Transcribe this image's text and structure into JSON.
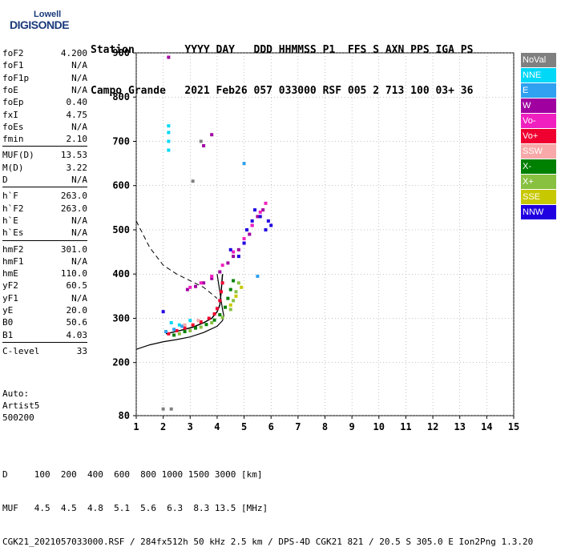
{
  "logo": {
    "line1": "Lowell",
    "line2": "DIGISONDE"
  },
  "header": {
    "row1": "Station        YYYY DAY   DDD HHMMSS P1  FFS S AXN PPS IGA PS",
    "row2": "Campo Grande   2021 Feb26 057 033000 RSF 005 2 713 100 03+ 36"
  },
  "params": {
    "g1": [
      {
        "name": "foF2",
        "value": "4.200"
      },
      {
        "name": "foF1",
        "value": "N/A"
      },
      {
        "name": "foF1p",
        "value": "N/A"
      },
      {
        "name": "foE",
        "value": "N/A"
      },
      {
        "name": "foEp",
        "value": "0.40"
      },
      {
        "name": "fxI",
        "value": "4.75"
      },
      {
        "name": "foEs",
        "value": "N/A"
      },
      {
        "name": "fmin",
        "value": "2.10"
      }
    ],
    "g2": [
      {
        "name": "MUF(D)",
        "value": "13.53"
      },
      {
        "name": "M(D)",
        "value": "3.22"
      },
      {
        "name": "D",
        "value": "N/A"
      }
    ],
    "g3": [
      {
        "name": "h`F",
        "value": "263.0"
      },
      {
        "name": "h`F2",
        "value": "263.0"
      },
      {
        "name": "h`E",
        "value": "N/A"
      },
      {
        "name": "h`Es",
        "value": "N/A"
      }
    ],
    "g4": [
      {
        "name": "hmF2",
        "value": "301.0"
      },
      {
        "name": "hmF1",
        "value": "N/A"
      },
      {
        "name": "hmE",
        "value": "110.0"
      },
      {
        "name": "yF2",
        "value": "60.5"
      },
      {
        "name": "yF1",
        "value": "N/A"
      },
      {
        "name": "yE",
        "value": "20.0"
      },
      {
        "name": "B0",
        "value": "50.6"
      },
      {
        "name": "B1",
        "value": "4.03"
      }
    ],
    "g5": [
      {
        "name": "C-level",
        "value": "33"
      }
    ]
  },
  "auto": {
    "line1": "Auto:",
    "line2": "Artist5",
    "line3": "500200"
  },
  "bottom": {
    "d_row": "D     100  200  400  600  800 1000 1500 3000 [km]",
    "muf_row": "MUF   4.5  4.5  4.8  5.1  5.6  6.3  8.3 13.5 [MHz]",
    "info_row": "CGK21_2021057033000.RSF / 284fx512h 50 kHz 2.5 km / DPS-4D CGK21 821 / 20.5 S 305.0 E Ion2Png 1.3.20"
  },
  "legend": [
    {
      "label": "NoVal",
      "color": "#808080"
    },
    {
      "label": "NNE",
      "color": "#00d8f8"
    },
    {
      "label": "E",
      "color": "#30a0f0"
    },
    {
      "label": "W",
      "color": "#a000a0"
    },
    {
      "label": "Vo-",
      "color": "#f020c0"
    },
    {
      "label": "Vo+",
      "color": "#f00030"
    },
    {
      "label": "SSW",
      "color": "#f8a8a8"
    },
    {
      "label": "X-",
      "color": "#008000"
    },
    {
      "label": "X+",
      "color": "#88c040"
    },
    {
      "label": "SSE",
      "color": "#c8c800"
    },
    {
      "label": "NNW",
      "color": "#2000e0"
    }
  ],
  "chart_data": {
    "type": "scatter",
    "title": "",
    "xlabel": "",
    "ylabel": "",
    "xlim": [
      1,
      15
    ],
    "ylim": [
      80,
      900
    ],
    "x_ticks": [
      1,
      2,
      3,
      4,
      5,
      6,
      7,
      8,
      9,
      10,
      11,
      12,
      13,
      14,
      15
    ],
    "y_ticks": [
      80,
      200,
      300,
      400,
      500,
      600,
      700,
      800,
      900
    ],
    "grid": true,
    "series": [
      {
        "name": "Vo+",
        "color": "#f00030",
        "points": [
          [
            2.2,
            265
          ],
          [
            2.5,
            272
          ],
          [
            2.8,
            278
          ],
          [
            3.1,
            285
          ],
          [
            3.4,
            292
          ],
          [
            3.7,
            300
          ],
          [
            3.9,
            310
          ],
          [
            4.0,
            322
          ],
          [
            4.1,
            340
          ],
          [
            4.15,
            360
          ],
          [
            4.2,
            380
          ]
        ]
      },
      {
        "name": "X-",
        "color": "#008000",
        "points": [
          [
            2.4,
            262
          ],
          [
            2.8,
            270
          ],
          [
            3.2,
            278
          ],
          [
            3.6,
            286
          ],
          [
            3.9,
            296
          ],
          [
            4.1,
            308
          ],
          [
            4.3,
            325
          ],
          [
            4.4,
            345
          ],
          [
            4.5,
            365
          ],
          [
            4.6,
            385
          ]
        ]
      },
      {
        "name": "X+",
        "color": "#88c040",
        "points": [
          [
            2.6,
            265
          ],
          [
            3.0,
            272
          ],
          [
            3.4,
            280
          ],
          [
            3.8,
            290
          ],
          [
            4.2,
            302
          ],
          [
            4.5,
            320
          ],
          [
            4.6,
            340
          ],
          [
            4.7,
            360
          ],
          [
            4.8,
            380
          ]
        ]
      },
      {
        "name": "W",
        "color": "#a000a0",
        "points": [
          [
            2.9,
            365
          ],
          [
            3.2,
            372
          ],
          [
            3.5,
            380
          ],
          [
            3.8,
            390
          ],
          [
            4.1,
            405
          ],
          [
            4.4,
            425
          ],
          [
            4.6,
            440
          ],
          [
            4.8,
            455
          ],
          [
            5.0,
            470
          ],
          [
            5.2,
            490
          ],
          [
            5.3,
            510
          ],
          [
            5.5,
            530
          ],
          [
            5.7,
            545
          ],
          [
            3.5,
            690
          ],
          [
            3.8,
            715
          ],
          [
            2.2,
            890
          ]
        ]
      },
      {
        "name": "Vo-",
        "color": "#f020c0",
        "points": [
          [
            3.0,
            370
          ],
          [
            3.4,
            380
          ],
          [
            3.8,
            395
          ],
          [
            4.2,
            420
          ],
          [
            4.6,
            450
          ],
          [
            5.0,
            480
          ],
          [
            5.3,
            510
          ],
          [
            5.6,
            540
          ],
          [
            5.8,
            560
          ]
        ]
      },
      {
        "name": "NNE",
        "color": "#00d8f8",
        "points": [
          [
            2.2,
            680
          ],
          [
            2.2,
            700
          ],
          [
            2.2,
            720
          ],
          [
            2.2,
            735
          ],
          [
            2.3,
            290
          ],
          [
            2.6,
            285
          ],
          [
            3.0,
            295
          ]
        ]
      },
      {
        "name": "E",
        "color": "#30a0f0",
        "points": [
          [
            2.1,
            270
          ],
          [
            2.4,
            275
          ],
          [
            2.7,
            282
          ],
          [
            5.5,
            395
          ],
          [
            5.0,
            650
          ]
        ]
      },
      {
        "name": "NNW",
        "color": "#2000e0",
        "points": [
          [
            4.8,
            440
          ],
          [
            5.0,
            470
          ],
          [
            5.1,
            500
          ],
          [
            5.3,
            520
          ],
          [
            5.4,
            545
          ],
          [
            5.6,
            530
          ],
          [
            5.8,
            500
          ],
          [
            5.9,
            520
          ],
          [
            6.0,
            510
          ],
          [
            4.5,
            455
          ],
          [
            2.0,
            315
          ]
        ]
      },
      {
        "name": "SSE",
        "color": "#c8c800",
        "points": [
          [
            4.5,
            330
          ],
          [
            4.7,
            350
          ],
          [
            4.9,
            370
          ]
        ]
      },
      {
        "name": "SSW",
        "color": "#f8a8a8",
        "points": [
          [
            2.8,
            285
          ],
          [
            3.3,
            295
          ]
        ]
      },
      {
        "name": "NoVal",
        "color": "#808080",
        "points": [
          [
            2.0,
            95
          ],
          [
            2.3,
            95
          ],
          [
            3.1,
            610
          ],
          [
            3.4,
            700
          ]
        ]
      }
    ],
    "profile_curve": [
      [
        1,
        230
      ],
      [
        1.5,
        240
      ],
      [
        2,
        247
      ],
      [
        2.5,
        252
      ],
      [
        3,
        258
      ],
      [
        3.5,
        268
      ],
      [
        4.0,
        282
      ],
      [
        4.2,
        295
      ],
      [
        4.25,
        305
      ],
      [
        4.2,
        320
      ],
      [
        4.15,
        340
      ],
      [
        4.1,
        360
      ],
      [
        4.05,
        380
      ],
      [
        4.0,
        400
      ]
    ],
    "muf_curve": [
      [
        1,
        520
      ],
      [
        1.5,
        460
      ],
      [
        2,
        420
      ],
      [
        2.5,
        400
      ],
      [
        3,
        385
      ],
      [
        3.5,
        370
      ],
      [
        4.0,
        345
      ]
    ],
    "trace_curve": [
      [
        2.1,
        265
      ],
      [
        2.6,
        272
      ],
      [
        3.1,
        280
      ],
      [
        3.5,
        290
      ],
      [
        3.8,
        300
      ],
      [
        4.0,
        315
      ],
      [
        4.1,
        330
      ],
      [
        4.15,
        360
      ],
      [
        4.2,
        400
      ]
    ]
  }
}
